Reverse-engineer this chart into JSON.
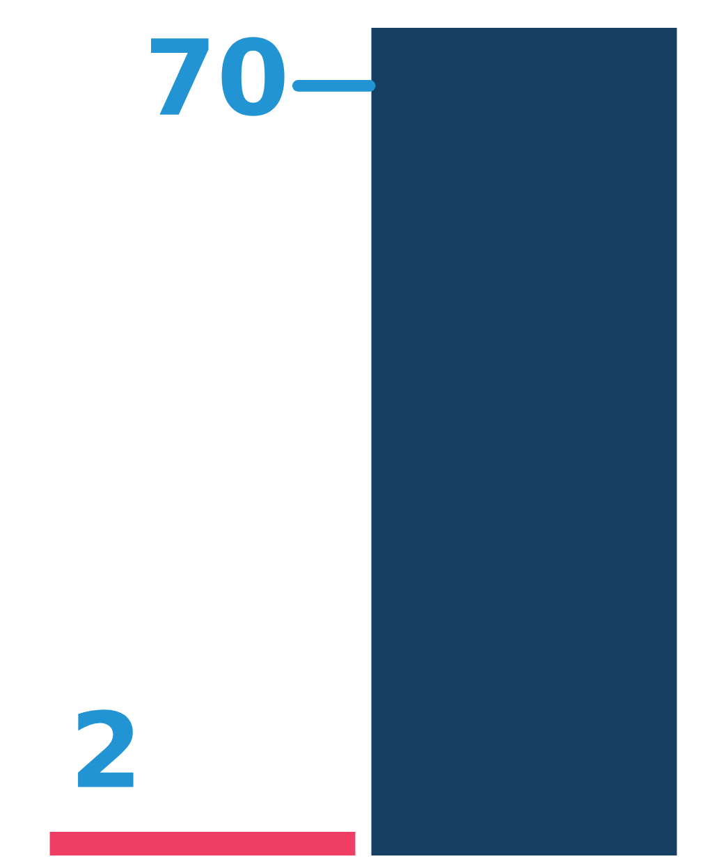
{
  "chart_data": {
    "type": "bar",
    "categories": [
      null,
      null
    ],
    "values": [
      2,
      70
    ],
    "colors": [
      "#ef3e64",
      "#173f63"
    ],
    "data_labels": true,
    "ylim": [
      0,
      70
    ],
    "tick_labels": false
  }
}
